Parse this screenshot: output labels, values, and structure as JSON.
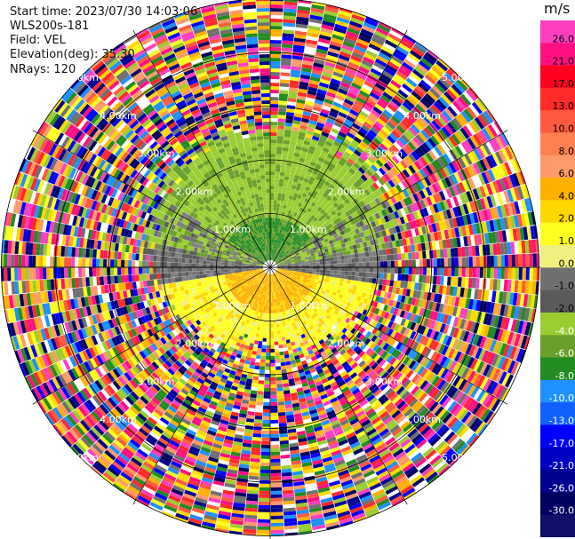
{
  "header": {
    "start_time": "Start time: 2023/07/30 14:03:06",
    "instrument": "WLS200s-181",
    "field": "Field: VEL",
    "elevation": "Elevation(deg): 35.30",
    "nrays": "NRays: 120"
  },
  "colorbar": {
    "unit": "m/s",
    "ticks": [
      "26.0",
      "21.0",
      "17.0",
      "13.0",
      "10.0",
      "8.0",
      "6.0",
      "4.0",
      "2.0",
      "1.0",
      "0.0",
      "-1.0",
      "-2.0",
      "-4.0",
      "-6.0",
      "-8.0",
      "-10.0",
      "-13.0",
      "-17.0",
      "-21.0",
      "-26.0",
      "-30.0"
    ],
    "colors": [
      "#ff3fbf",
      "#ff1080",
      "#ff0020",
      "#ff2a2a",
      "#ff5a40",
      "#ff8050",
      "#ff9a6a",
      "#ffb000",
      "#ffd800",
      "#ffff20",
      "#f0f080",
      "#707070",
      "#5a5a5a",
      "#9acd32",
      "#6aa02a",
      "#228b22",
      "#1e90ff",
      "#1060ff",
      "#0000ff",
      "#0000c0",
      "#000090",
      "#000060",
      "#10106a"
    ]
  },
  "chart_data": {
    "type": "heatmap",
    "subtype": "polar-ppi",
    "field": "VEL",
    "units": "m/s",
    "nrays": 120,
    "vmin": -30.0,
    "vmax": 26.0,
    "range_rings_km": [
      1.0,
      2.0,
      3.0,
      4.0,
      5.0
    ],
    "ring_labels": [
      "1.00km",
      "2.00km",
      "3.00km",
      "4.00km",
      "5.00km"
    ],
    "max_range_km": 5.0,
    "pattern": {
      "near_field_north": "green (-4 to -8 m/s)",
      "near_field_south": "yellow/orange (2 to 6 m/s)",
      "east_west_transition": "grey (~0 m/s)",
      "far_field": "noise (all colors)"
    }
  }
}
